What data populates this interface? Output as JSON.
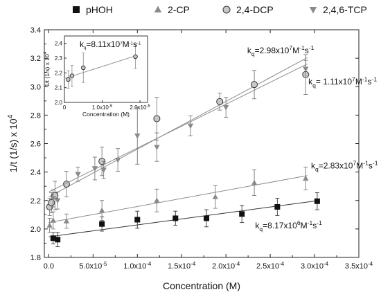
{
  "chart_data": [
    {
      "type": "scatter",
      "xlabel": "Concentration (M)",
      "ylabel": "1/t (1/s) x 10^4",
      "ylabel_base": "1/t (1/s) x 10",
      "ylabel_exp": "4",
      "xlim": [
        -5e-06,
        0.00035
      ],
      "ylim": [
        1.8,
        3.4
      ],
      "x_ticks": [
        0,
        5e-05,
        0.0001,
        0.00015,
        0.0002,
        0.00025,
        0.0003,
        0.00035
      ],
      "x_tick_labels": [
        "0.0",
        "5.0x10-5",
        "1.0x10-4",
        "1.5x10-4",
        "2.0x10-4",
        "2.5x10-4",
        "3.0x10-4",
        "3.5x10-4"
      ],
      "y_ticks": [
        1.8,
        2.0,
        2.2,
        2.4,
        2.6,
        2.8,
        3.0,
        3.2,
        3.4
      ],
      "y_tick_labels": [
        "1.8",
        "2.0",
        "2.2",
        "2.4",
        "2.6",
        "2.8",
        "3.0",
        "3.2",
        "3.4"
      ],
      "legend_position": "top",
      "grid": false,
      "series": [
        {
          "name": "pHOH",
          "marker": "square",
          "color": "#111111",
          "x": [
            5e-06,
            1e-05,
            6e-05,
            0.0001,
            0.000143,
            0.000178,
            0.000218,
            0.000258,
            0.000303
          ],
          "y": [
            1.935,
            1.925,
            2.035,
            2.065,
            2.075,
            2.075,
            2.105,
            2.155,
            2.195
          ],
          "err": [
            0.04,
            0.05,
            0.05,
            0.06,
            0.05,
            0.06,
            0.06,
            0.06,
            0.06
          ],
          "fit": [
            [
              0,
              1.945
            ],
            [
              0.000305,
              2.2
            ]
          ]
        },
        {
          "name": "2-CP",
          "marker": "triangle-up",
          "color": "#8a8a8a",
          "x": [
            1e-06,
            5e-06,
            2e-05,
            6e-05,
            0.000122,
            0.000188,
            0.000232,
            0.00029
          ],
          "y": [
            2.025,
            2.06,
            2.055,
            2.13,
            2.2,
            2.225,
            2.325,
            2.355
          ],
          "err": [
            0.05,
            0.06,
            0.05,
            0.07,
            0.08,
            0.08,
            0.09,
            0.08
          ],
          "fit": [
            [
              0,
              2.045
            ],
            [
              0.000292,
              2.375
            ]
          ]
        },
        {
          "name": "2,4-DCP",
          "marker": "circle",
          "color": "#c8c8c8",
          "x": [
            1e-06,
            3e-06,
            7e-06,
            2e-05,
            6e-05,
            0.000122,
            0.000193,
            0.000232,
            0.00029
          ],
          "y": [
            2.155,
            2.185,
            2.235,
            2.315,
            2.475,
            2.775,
            2.895,
            3.015,
            3.085
          ],
          "err": [
            0.06,
            0.07,
            0.1,
            0.09,
            0.1,
            0.15,
            0.06,
            0.1,
            0.14
          ],
          "fit": [
            [
              0,
              2.225
            ],
            [
              0.000292,
              3.205
            ]
          ]
        },
        {
          "name": "2,4,6-TCP",
          "marker": "triangle-down",
          "color": "#8a8a8a",
          "x": [
            5e-06,
            1e-05,
            3.3e-05,
            5.2e-05,
            6.2e-05,
            7.8e-05,
            0.0001,
            0.000122,
            0.00016,
            0.0002,
            0.00029
          ],
          "y": [
            2.215,
            2.2,
            2.385,
            2.425,
            2.415,
            2.485,
            2.655,
            2.575,
            2.725,
            2.855,
            3.125
          ],
          "err": [
            0.06,
            0.06,
            0.05,
            0.08,
            0.06,
            0.08,
            0.2,
            0.1,
            0.07,
            0.07,
            0.06
          ],
          "fit": [
            [
              0,
              2.26
            ],
            [
              0.000292,
              3.16
            ]
          ]
        }
      ],
      "annotations": [
        {
          "pre": "k",
          "sub": "q",
          "mid": "=2.98x10",
          "sup": "7",
          "post": "M",
          "sup2": "-1",
          "post2": "s",
          "sup3": "-1"
        },
        {
          "pre": "k",
          "sub": "q",
          "mid": "= 1.11x10",
          "sup": "7",
          "post": "M",
          "sup2": "-1",
          "post2": "s",
          "sup3": "-1"
        },
        {
          "pre": "k",
          "sub": "q",
          "mid": "=2.83x10",
          "sup": "7",
          "post": "M",
          "sup2": "-1",
          "post2": "s",
          "sup3": "-1"
        },
        {
          "pre": "k",
          "sub": "q",
          "mid": "=8.17x10",
          "sup": "6",
          "post": "M",
          "sup2": "-1",
          "post2": "s",
          "sup3": "-1"
        }
      ]
    },
    {
      "type": "scatter",
      "xlabel": "Concentration (M)",
      "ylabel_base": "1/t (1/s) x 10",
      "ylabel_exp": "4",
      "xlim": [
        0,
        2.2e-05
      ],
      "ylim": [
        2.0,
        2.45
      ],
      "x_ticks": [
        0,
        1e-05,
        2e-05
      ],
      "x_tick_labels": [
        "0",
        "1.0x10-5",
        "2.0x10-5"
      ],
      "y_ticks": [
        2.0,
        2.1,
        2.2,
        2.3,
        2.4
      ],
      "y_tick_labels": [
        "2.0",
        "2.1",
        "2.2",
        "2.3",
        "2.4"
      ],
      "annotation": {
        "pre": "k",
        "sub": "q",
        "mid": "=8.11x10",
        "sup": "7",
        "post": "M",
        "sup2": "-1",
        "post2": "s",
        "sup3": "-1"
      },
      "series": [
        {
          "name": "2,4-DCP",
          "marker": "circle",
          "color": "#c8c8c8",
          "x": [
            1e-06,
            2e-06,
            5e-06,
            1.88e-05
          ],
          "y": [
            2.155,
            2.18,
            2.235,
            2.31
          ],
          "err": [
            0.06,
            0.07,
            0.1,
            0.08
          ],
          "fit": [
            [
              0,
              2.162
            ],
            [
              1.88e-05,
              2.315
            ]
          ]
        }
      ]
    }
  ]
}
